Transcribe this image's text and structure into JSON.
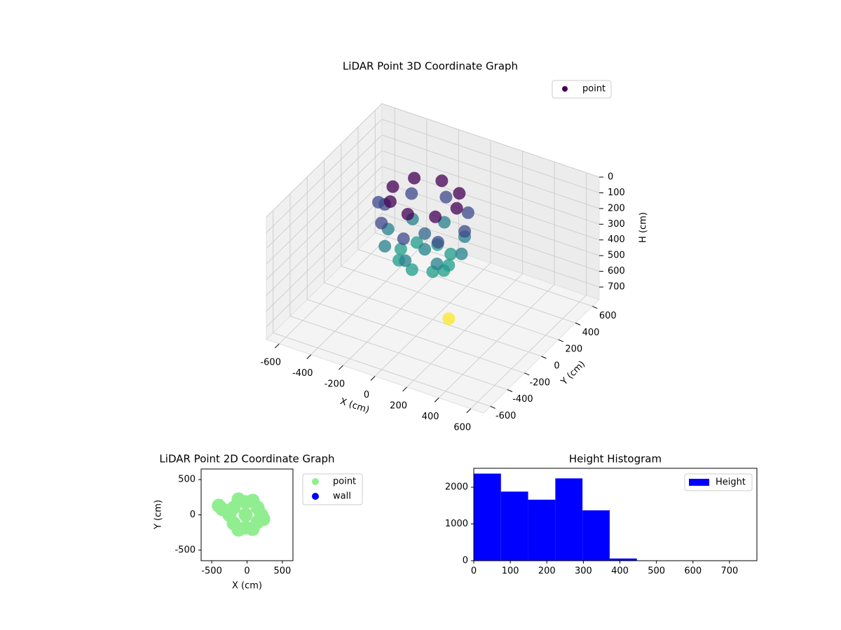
{
  "chart_data": [
    {
      "type": "scatter3d",
      "title": "LiDAR Point 3D Coordinate Graph",
      "x_label": "X (cm)",
      "y_label": "Y (cm)",
      "z_label": "H (cm)",
      "xlim": [
        -680,
        680
      ],
      "ylim": [
        -680,
        680
      ],
      "zlim": [
        780,
        0
      ],
      "xticks": [
        -600,
        -400,
        -200,
        0,
        200,
        400,
        600
      ],
      "yticks": [
        -600,
        -400,
        -200,
        0,
        200,
        400,
        600
      ],
      "zticks": [
        0,
        100,
        200,
        300,
        400,
        500,
        600,
        700
      ],
      "colormap": "viridis",
      "legend": "upper right",
      "series": [
        {
          "name": "point",
          "color": "#440154",
          "x": [
            100,
            80,
            100,
            56,
            -50,
            -156,
            -200,
            -156,
            -50,
            56,
            180,
            113,
            -50,
            -213,
            -280,
            -213,
            -50,
            113,
            -50,
            -50,
            200,
            127,
            -50,
            -227,
            -300,
            -227,
            -50,
            127,
            -340,
            150,
            91,
            -50,
            -191,
            -250,
            -191,
            -50,
            91
          ],
          "y": [
            0,
            -20,
            0,
            106,
            150,
            106,
            0,
            -106,
            -150,
            -106,
            0,
            163,
            230,
            163,
            0,
            -163,
            -230,
            -163,
            0,
            0,
            0,
            177,
            250,
            177,
            0,
            -177,
            -250,
            -177,
            0,
            0,
            141,
            200,
            141,
            0,
            -141,
            -200,
            -141
          ],
          "z": [
            740,
            430,
            400,
            400,
            400,
            400,
            400,
            400,
            400,
            400,
            300,
            300,
            300,
            300,
            300,
            300,
            300,
            300,
            350,
            250,
            150,
            150,
            150,
            150,
            150,
            150,
            150,
            150,
            150,
            20,
            20,
            20,
            20,
            20,
            20,
            20,
            20
          ]
        }
      ]
    },
    {
      "type": "scatter",
      "title": "LiDAR Point 2D Coordinate Graph",
      "x_label": "X (cm)",
      "y_label": "Y (cm)",
      "xlim": [
        -650,
        650
      ],
      "ylim": [
        -650,
        650
      ],
      "xticks": [
        -500,
        0,
        500
      ],
      "yticks": [
        -500,
        0,
        500
      ],
      "legend": "outside upper right",
      "series": [
        {
          "name": "point",
          "color": "#90ee90",
          "x": [
            -20,
            -20,
            -20,
            150,
            150,
            -190,
            -190,
            200,
            -250,
            80,
            -120,
            80,
            -120,
            -400,
            -350,
            230
          ],
          "y": [
            0,
            180,
            -180,
            100,
            -100,
            100,
            -120,
            0,
            0,
            200,
            220,
            -200,
            -210,
            130,
            80,
            -60
          ]
        },
        {
          "name": "wall",
          "color": "#0000ff",
          "x": [],
          "y": []
        }
      ]
    },
    {
      "type": "histogram",
      "title": "Height Histogram",
      "bins": [
        0,
        74.4,
        148.8,
        223.2,
        297.6,
        372,
        446.4,
        520.8,
        595.2,
        669.6,
        744
      ],
      "values": [
        2370,
        1880,
        1660,
        2240,
        1370,
        60,
        0,
        0,
        1,
        1
      ],
      "name": "Height",
      "color": "#0000ff",
      "xlim": [
        0,
        775
      ],
      "ylim": [
        0,
        2514
      ],
      "xticks": [
        0,
        100,
        200,
        300,
        400,
        500,
        600,
        700
      ],
      "yticks": [
        0,
        1000,
        2000
      ],
      "legend": "upper right"
    }
  ]
}
